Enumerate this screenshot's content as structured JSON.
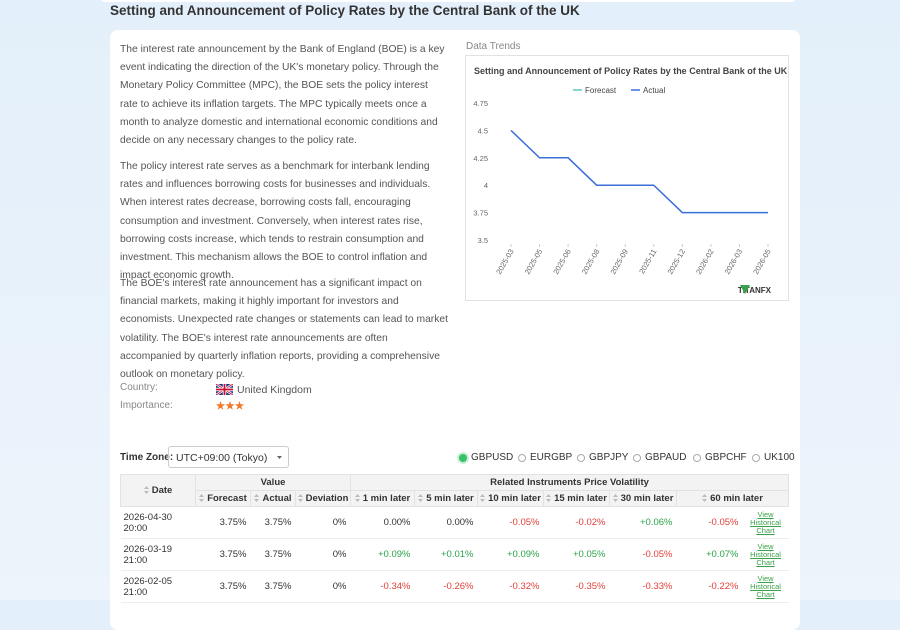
{
  "header": {
    "title": "Setting and Announcement of Policy Rates by the Central Bank of the UK"
  },
  "description": [
    "The interest rate announcement by the Bank of England (BOE) is a key event indicating the direction of the UK's monetary policy. Through the Monetary Policy Committee (MPC), the BOE sets the policy interest rate to achieve its inflation targets. The MPC typically meets once a month to analyze domestic and international economic conditions and decide on any necessary changes to the policy rate.",
    "The policy interest rate serves as a benchmark for interbank lending rates and influences borrowing costs for businesses and individuals. When interest rates decrease, borrowing costs fall, encouraging consumption and investment. Conversely, when interest rates rise, borrowing costs increase, which tends to restrain consumption and investment. This mechanism allows the BOE to control inflation and impact economic growth.",
    "The BOE's interest rate announcement has a significant impact on financial markets, making it highly important for investors and economists. Unexpected rate changes or statements can lead to market volatility. The BOE's interest rate announcements are often accompanied by quarterly inflation reports, providing a comprehensive outlook on monetary policy."
  ],
  "info": {
    "country_label": "Country:",
    "country": "United Kingdom",
    "importance_label": "Importance:"
  },
  "chart_panel": {
    "label": "Data Trends",
    "logo": "TITANFX"
  },
  "chart": {
    "type": "line",
    "title": "Setting and Announcement of Policy Rates by the Central Bank of the UK",
    "categories": [
      "2025-03",
      "2025-05",
      "2025-06",
      "2025-08",
      "2025-09",
      "2025-11",
      "2025-12",
      "2026-02",
      "2026-03",
      "2026-05"
    ],
    "series": [
      {
        "name": "Forecast",
        "color": "#5cc8c0",
        "values": [
          null,
          null,
          null,
          null,
          null,
          null,
          null,
          null,
          null,
          null
        ]
      },
      {
        "name": "Actual",
        "color": "#3b6fd8",
        "values": [
          4.5,
          4.25,
          4.25,
          4,
          4,
          4,
          3.75,
          3.75,
          3.75,
          3.75
        ]
      }
    ],
    "ylim": [
      3.5,
      4.75
    ],
    "yticks": [
      3.5,
      3.75,
      4,
      4.25,
      4.5,
      4.75
    ],
    "legend": "top",
    "grid": false
  },
  "controls": {
    "timezone_label": "Time Zone:",
    "timezone": "UTC+09:00 (Tokyo)",
    "instruments": [
      "GBPUSD",
      "EURGBP",
      "GBPJPY",
      "GBPAUD",
      "GBPCHF",
      "UK100"
    ],
    "selected": "GBPUSD"
  },
  "table": {
    "group_headers": [
      "Date",
      "Value",
      "Related Instruments Price Volatility"
    ],
    "headers": [
      "Forecast",
      "Actual",
      "Deviation",
      "1 min later",
      "5 min later",
      "10 min later",
      "15 min later",
      "30 min later",
      "60 min later"
    ],
    "link": "View Historical Chart",
    "rows": [
      [
        "2026-04-30 20:00",
        "3.75%",
        "3.75%",
        "0%",
        "0.00%",
        "0.00%",
        "-0.05%",
        "-0.02%",
        "+0.06%",
        "-0.05%"
      ],
      [
        "2026-03-19 21:00",
        "3.75%",
        "3.75%",
        "0%",
        "+0.09%",
        "+0.01%",
        "+0.09%",
        "+0.05%",
        "-0.05%",
        "+0.07%"
      ],
      [
        "2026-02-05 21:00",
        "3.75%",
        "3.75%",
        "0%",
        "-0.34%",
        "-0.26%",
        "-0.32%",
        "-0.35%",
        "-0.33%",
        "-0.22%"
      ]
    ]
  }
}
